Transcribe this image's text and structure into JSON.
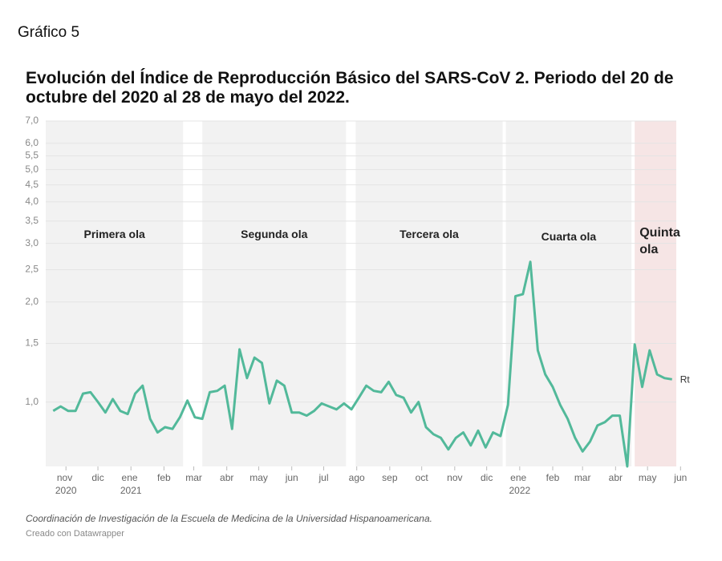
{
  "chart_data": {
    "type": "line",
    "supertitle": "Gráfico 5",
    "title": "Evolución del Índice de Reproducción Básico del SARS-CoV 2. Periodo del 20 de octubre del 2020 al 28 de mayo del 2022.",
    "note": "Coordinación de Investigación de la Escuela de Medicina de la Universidad Hispanoamericana.",
    "credit": "Creado con Datawrapper",
    "log_scale": true,
    "grid": true,
    "xlim": [
      "2020-10-13",
      "2022-05-28"
    ],
    "ylim": [
      0.64,
      7
    ],
    "yticks": [
      {
        "value": 1,
        "label": "1,0"
      },
      {
        "value": 1.5,
        "label": "1,5"
      },
      {
        "value": 2,
        "label": "2,0"
      },
      {
        "value": 2.5,
        "label": "2,5"
      },
      {
        "value": 3,
        "label": "3,0"
      },
      {
        "value": 3.5,
        "label": "3,5"
      },
      {
        "value": 4,
        "label": "4,0"
      },
      {
        "value": 4.5,
        "label": "4,5"
      },
      {
        "value": 5,
        "label": "5,0"
      },
      {
        "value": 5.5,
        "label": "5,5"
      },
      {
        "value": 6,
        "label": "6,0"
      },
      {
        "value": 7,
        "label": "7,0"
      }
    ],
    "xticks": [
      {
        "value": "2020-11-01",
        "label": "nov 2020"
      },
      {
        "value": "2020-12-01",
        "label": "dic"
      },
      {
        "value": "2021-01-01",
        "label": "ene 2021"
      },
      {
        "value": "2021-02-01",
        "label": "feb"
      },
      {
        "value": "2021-03-01",
        "label": "mar"
      },
      {
        "value": "2021-04-01",
        "label": "abr"
      },
      {
        "value": "2021-05-01",
        "label": "may"
      },
      {
        "value": "2021-06-01",
        "label": "jun"
      },
      {
        "value": "2021-07-01",
        "label": "jul"
      },
      {
        "value": "2021-08-01",
        "label": "ago"
      },
      {
        "value": "2021-09-01",
        "label": "sep"
      },
      {
        "value": "2021-10-01",
        "label": "oct"
      },
      {
        "value": "2021-11-01",
        "label": "nov"
      },
      {
        "value": "2021-12-01",
        "label": "dic"
      },
      {
        "value": "2022-01-01",
        "label": "ene 2022"
      },
      {
        "value": "2022-02-01",
        "label": "feb"
      },
      {
        "value": "2022-03-01",
        "label": "mar"
      },
      {
        "value": "2022-04-01",
        "label": "abr"
      },
      {
        "value": "2022-05-01",
        "label": "may"
      },
      {
        "value": "2022-06-01",
        "label": "jun"
      }
    ],
    "bands": [
      {
        "label": "Primera ola",
        "start": "2020-10-13",
        "end": "2021-02-19",
        "color": "#f2f2f2"
      },
      {
        "label": "Segunda ola",
        "start": "2021-03-09",
        "end": "2021-07-22",
        "color": "#f2f2f2"
      },
      {
        "label": "Tercera ola",
        "start": "2021-07-31",
        "end": "2021-12-16",
        "color": "#f2f2f2"
      },
      {
        "label": "Cuarta ola",
        "start": "2021-12-19",
        "end": "2022-04-16",
        "color": "#f2f2f2"
      },
      {
        "label": "Quinta ola",
        "start": "2022-04-19",
        "end": "2022-05-28",
        "color": "#f6e5e5"
      }
    ],
    "x": [
      "2020-10-20",
      "2020-10-27",
      "2020-11-03",
      "2020-11-10",
      "2020-11-17",
      "2020-11-24",
      "2020-12-01",
      "2020-12-08",
      "2020-12-15",
      "2020-12-22",
      "2020-12-29",
      "2021-01-05",
      "2021-01-12",
      "2021-01-19",
      "2021-01-26",
      "2021-02-02",
      "2021-02-09",
      "2021-02-16",
      "2021-02-23",
      "2021-03-02",
      "2021-03-09",
      "2021-03-16",
      "2021-03-23",
      "2021-03-30",
      "2021-04-06",
      "2021-04-13",
      "2021-04-20",
      "2021-04-27",
      "2021-05-04",
      "2021-05-11",
      "2021-05-18",
      "2021-05-25",
      "2021-06-01",
      "2021-06-08",
      "2021-06-15",
      "2021-06-22",
      "2021-06-29",
      "2021-07-06",
      "2021-07-13",
      "2021-07-20",
      "2021-07-27",
      "2021-08-03",
      "2021-08-10",
      "2021-08-17",
      "2021-08-24",
      "2021-08-31",
      "2021-09-07",
      "2021-09-14",
      "2021-09-21",
      "2021-09-28",
      "2021-10-05",
      "2021-10-12",
      "2021-10-19",
      "2021-10-26",
      "2021-11-02",
      "2021-11-09",
      "2021-11-16",
      "2021-11-23",
      "2021-11-30",
      "2021-12-07",
      "2021-12-14",
      "2021-12-21",
      "2021-12-28",
      "2022-01-04",
      "2022-01-11",
      "2022-01-18",
      "2022-01-25",
      "2022-02-01",
      "2022-02-08",
      "2022-02-15",
      "2022-02-22",
      "2022-03-01",
      "2022-03-08",
      "2022-03-15",
      "2022-03-22",
      "2022-03-29",
      "2022-04-05",
      "2022-04-12",
      "2022-04-19",
      "2022-04-26",
      "2022-05-03",
      "2022-05-10",
      "2022-05-17",
      "2022-05-24"
    ],
    "series": [
      {
        "name": "Rt",
        "color": "#52b99a",
        "values": [
          0.94,
          0.97,
          0.94,
          0.94,
          1.06,
          1.07,
          1.0,
          0.93,
          1.02,
          0.94,
          0.92,
          1.06,
          1.12,
          0.89,
          0.81,
          0.84,
          0.83,
          0.9,
          1.01,
          0.9,
          0.89,
          1.07,
          1.08,
          1.12,
          0.83,
          1.44,
          1.18,
          1.36,
          1.31,
          0.99,
          1.16,
          1.12,
          0.93,
          0.93,
          0.91,
          0.94,
          0.99,
          0.97,
          0.95,
          0.99,
          0.95,
          1.03,
          1.12,
          1.08,
          1.07,
          1.15,
          1.05,
          1.03,
          0.93,
          1.0,
          0.84,
          0.8,
          0.78,
          0.72,
          0.78,
          0.81,
          0.74,
          0.82,
          0.73,
          0.81,
          0.79,
          0.98,
          2.08,
          2.11,
          2.64,
          1.43,
          1.21,
          1.11,
          0.98,
          0.89,
          0.78,
          0.71,
          0.76,
          0.85,
          0.87,
          0.91,
          0.91,
          0.64,
          1.49,
          1.11,
          1.43,
          1.21,
          1.18,
          1.17
        ]
      }
    ]
  }
}
